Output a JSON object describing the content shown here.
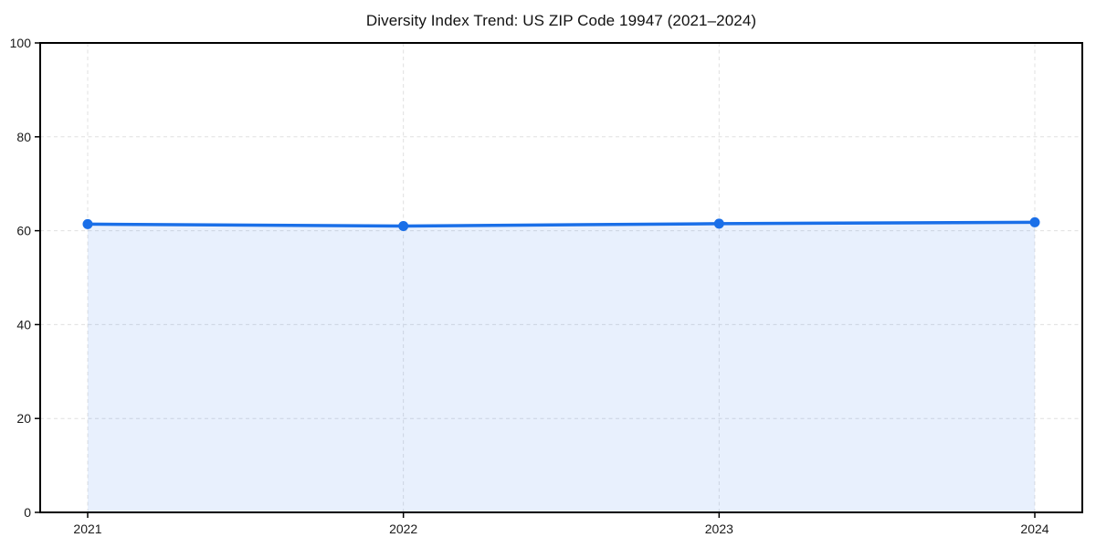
{
  "page": {
    "background": "#ffffff"
  },
  "chart_data": {
    "type": "area",
    "title": "Diversity Index Trend: US ZIP Code 19947 (2021–2024)",
    "categories": [
      "2021",
      "2022",
      "2023",
      "2024"
    ],
    "series": [
      {
        "name": "Diversity Index",
        "values": [
          61.4,
          61.0,
          61.5,
          61.8
        ]
      }
    ],
    "xlabel": "",
    "ylabel": "",
    "ylim": [
      0,
      100
    ],
    "yticks": [
      0,
      20,
      40,
      60,
      80,
      100
    ],
    "grid": true,
    "grid_style": "dashed",
    "legend_position": "none",
    "line_color": "#1a6fe8",
    "marker_color": "#1a6fe8",
    "fill_color": "rgba(26, 111, 232, 0.10)",
    "grid_color": "#e0e0e0",
    "spine_color": "#000000",
    "tick_label_color": "#1a1a1a",
    "title_color": "#111111"
  }
}
